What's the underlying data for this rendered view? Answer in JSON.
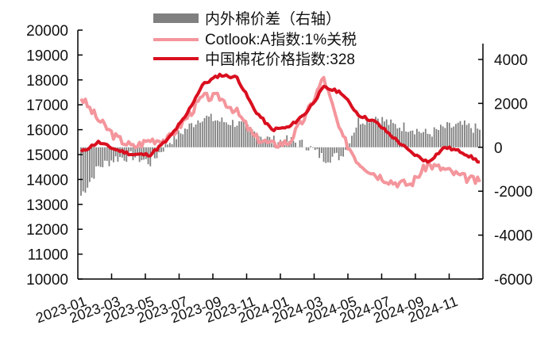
{
  "chart_data": {
    "type": "line",
    "title": "",
    "xlabel": "",
    "ylabel_left": "",
    "ylabel_right": "",
    "ylim_left": [
      10000,
      20000
    ],
    "ylim_right": [
      -6000,
      5000
    ],
    "yticks_left": [
      10000,
      11000,
      12000,
      13000,
      14000,
      15000,
      16000,
      17000,
      18000,
      19000,
      20000
    ],
    "yticks_right": [
      -6000,
      -4000,
      -2000,
      0,
      2000,
      4000
    ],
    "x_tick_labels": [
      "2023-01",
      "2023-03",
      "2023-05",
      "2023-07",
      "2023-09",
      "2023-11",
      "2024-01",
      "2024-03",
      "2024-05",
      "2024-07",
      "2024-09",
      "2024-11"
    ],
    "grid": false,
    "legend_position": "top-center",
    "legend": [
      {
        "label": "内外棉价差（右轴）",
        "type": "bar",
        "color": "#808080"
      },
      {
        "label": "Cotlook:A指数:1%关税",
        "type": "line",
        "color": "#f4959c"
      },
      {
        "label": "中国棉花价格指数:328",
        "type": "line",
        "color": "#d90f1f"
      }
    ],
    "x": [
      "2023-01",
      "2023-02",
      "2023-03",
      "2023-04",
      "2023-05",
      "2023-06",
      "2023-07",
      "2023-08",
      "2023-09",
      "2023-10",
      "2023-11",
      "2023-12",
      "2024-01",
      "2024-02",
      "2024-03",
      "2024-04",
      "2024-05",
      "2024-06",
      "2024-07",
      "2024-08",
      "2024-09",
      "2024-10",
      "2024-11",
      "2024-12"
    ],
    "series": [
      {
        "name": "中国棉花价格指数:328",
        "axis": "left",
        "color": "#d90f1f",
        "values": [
          15100,
          15500,
          15200,
          15000,
          15000,
          15600,
          16500,
          17800,
          18200,
          18100,
          16800,
          16000,
          16100,
          16700,
          17700,
          17500,
          16600,
          16300,
          15700,
          15100,
          14700,
          15300,
          15100,
          14700
        ]
      },
      {
        "name": "Cotlook:A指数:1%关税",
        "axis": "left",
        "color": "#f4959c",
        "values": [
          17300,
          16400,
          15700,
          15300,
          15600,
          15600,
          16400,
          17300,
          17300,
          16700,
          15700,
          15400,
          15500,
          16600,
          18100,
          15800,
          14700,
          14200,
          13900,
          13800,
          14600,
          14400,
          14100,
          13900
        ]
      },
      {
        "name": "内外棉价差（右轴）",
        "axis": "right",
        "color": "#808080",
        "type": "bar",
        "values": [
          -2200,
          -900,
          -500,
          -400,
          -700,
          200,
          800,
          1400,
          1200,
          1100,
          700,
          300,
          300,
          100,
          -500,
          -400,
          1200,
          1400,
          1000,
          900,
          600,
          900,
          1000,
          800
        ]
      }
    ]
  }
}
